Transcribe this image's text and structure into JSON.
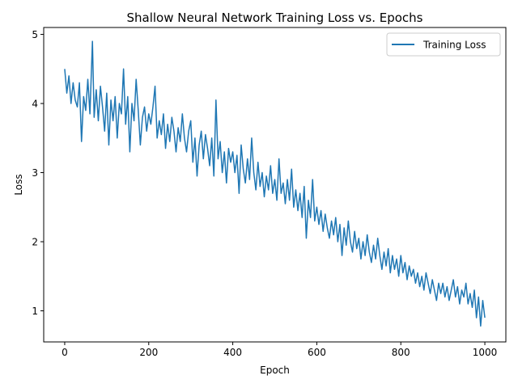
{
  "chart_data": {
    "type": "line",
    "title": "Shallow Neural Network Training Loss vs. Epochs",
    "xlabel": "Epoch",
    "ylabel": "Loss",
    "xlim": [
      -50,
      1050
    ],
    "ylim": [
      0.55,
      5.1
    ],
    "xticks": [
      0,
      200,
      400,
      600,
      800,
      1000
    ],
    "yticks": [
      1,
      2,
      3,
      4,
      5
    ],
    "grid": false,
    "legend_position": "top-right",
    "series": [
      {
        "name": "Training Loss",
        "color": "#1f77b4",
        "points": [
          [
            0,
            4.5
          ],
          [
            5,
            4.15
          ],
          [
            10,
            4.4
          ],
          [
            15,
            4.0
          ],
          [
            20,
            4.3
          ],
          [
            25,
            4.05
          ],
          [
            30,
            3.95
          ],
          [
            35,
            4.3
          ],
          [
            40,
            3.45
          ],
          [
            45,
            4.1
          ],
          [
            50,
            3.9
          ],
          [
            55,
            4.35
          ],
          [
            60,
            3.85
          ],
          [
            66,
            4.9
          ],
          [
            70,
            3.8
          ],
          [
            75,
            4.2
          ],
          [
            80,
            3.75
          ],
          [
            85,
            4.25
          ],
          [
            90,
            3.95
          ],
          [
            95,
            3.6
          ],
          [
            100,
            4.15
          ],
          [
            105,
            3.4
          ],
          [
            110,
            4.05
          ],
          [
            115,
            3.75
          ],
          [
            120,
            4.1
          ],
          [
            125,
            3.5
          ],
          [
            130,
            4.0
          ],
          [
            135,
            3.85
          ],
          [
            140,
            4.5
          ],
          [
            145,
            3.7
          ],
          [
            150,
            4.1
          ],
          [
            155,
            3.3
          ],
          [
            160,
            4.0
          ],
          [
            165,
            3.75
          ],
          [
            170,
            4.35
          ],
          [
            175,
            3.9
          ],
          [
            180,
            3.4
          ],
          [
            185,
            3.8
          ],
          [
            190,
            3.95
          ],
          [
            195,
            3.6
          ],
          [
            200,
            3.85
          ],
          [
            205,
            3.7
          ],
          [
            210,
            3.95
          ],
          [
            215,
            4.25
          ],
          [
            220,
            3.5
          ],
          [
            225,
            3.75
          ],
          [
            230,
            3.55
          ],
          [
            235,
            3.85
          ],
          [
            240,
            3.35
          ],
          [
            245,
            3.7
          ],
          [
            250,
            3.45
          ],
          [
            255,
            3.8
          ],
          [
            260,
            3.6
          ],
          [
            265,
            3.3
          ],
          [
            270,
            3.65
          ],
          [
            275,
            3.45
          ],
          [
            280,
            3.85
          ],
          [
            285,
            3.5
          ],
          [
            290,
            3.3
          ],
          [
            295,
            3.6
          ],
          [
            300,
            3.75
          ],
          [
            305,
            3.15
          ],
          [
            310,
            3.5
          ],
          [
            315,
            2.95
          ],
          [
            320,
            3.4
          ],
          [
            325,
            3.6
          ],
          [
            330,
            3.2
          ],
          [
            335,
            3.55
          ],
          [
            340,
            3.35
          ],
          [
            345,
            3.1
          ],
          [
            350,
            3.5
          ],
          [
            355,
            2.95
          ],
          [
            360,
            4.05
          ],
          [
            365,
            3.2
          ],
          [
            370,
            3.45
          ],
          [
            375,
            3.0
          ],
          [
            380,
            3.3
          ],
          [
            385,
            2.85
          ],
          [
            390,
            3.35
          ],
          [
            395,
            3.15
          ],
          [
            400,
            3.3
          ],
          [
            405,
            3.0
          ],
          [
            410,
            3.25
          ],
          [
            415,
            2.7
          ],
          [
            420,
            3.4
          ],
          [
            425,
            3.05
          ],
          [
            430,
            2.85
          ],
          [
            435,
            3.2
          ],
          [
            440,
            2.9
          ],
          [
            445,
            3.5
          ],
          [
            450,
            3.0
          ],
          [
            455,
            2.75
          ],
          [
            460,
            3.15
          ],
          [
            465,
            2.8
          ],
          [
            470,
            3.0
          ],
          [
            475,
            2.65
          ],
          [
            480,
            2.95
          ],
          [
            485,
            2.75
          ],
          [
            490,
            3.1
          ],
          [
            495,
            2.7
          ],
          [
            500,
            2.9
          ],
          [
            505,
            2.6
          ],
          [
            510,
            3.2
          ],
          [
            515,
            2.7
          ],
          [
            520,
            2.85
          ],
          [
            525,
            2.55
          ],
          [
            530,
            2.9
          ],
          [
            535,
            2.6
          ],
          [
            540,
            3.05
          ],
          [
            545,
            2.5
          ],
          [
            550,
            2.75
          ],
          [
            555,
            2.45
          ],
          [
            560,
            2.7
          ],
          [
            565,
            2.35
          ],
          [
            570,
            2.8
          ],
          [
            575,
            2.05
          ],
          [
            580,
            2.6
          ],
          [
            585,
            2.35
          ],
          [
            590,
            2.9
          ],
          [
            595,
            2.3
          ],
          [
            600,
            2.5
          ],
          [
            605,
            2.25
          ],
          [
            610,
            2.45
          ],
          [
            615,
            2.15
          ],
          [
            620,
            2.4
          ],
          [
            625,
            2.2
          ],
          [
            630,
            2.05
          ],
          [
            635,
            2.3
          ],
          [
            640,
            2.1
          ],
          [
            645,
            2.35
          ],
          [
            650,
            2.0
          ],
          [
            655,
            2.25
          ],
          [
            660,
            1.8
          ],
          [
            665,
            2.2
          ],
          [
            670,
            1.95
          ],
          [
            675,
            2.3
          ],
          [
            680,
            2.0
          ],
          [
            685,
            1.85
          ],
          [
            690,
            2.15
          ],
          [
            695,
            1.9
          ],
          [
            700,
            2.05
          ],
          [
            705,
            1.75
          ],
          [
            710,
            2.0
          ],
          [
            715,
            1.8
          ],
          [
            720,
            2.1
          ],
          [
            725,
            1.85
          ],
          [
            730,
            1.7
          ],
          [
            735,
            1.95
          ],
          [
            740,
            1.75
          ],
          [
            745,
            2.05
          ],
          [
            750,
            1.8
          ],
          [
            755,
            1.6
          ],
          [
            760,
            1.85
          ],
          [
            765,
            1.65
          ],
          [
            770,
            1.9
          ],
          [
            775,
            1.55
          ],
          [
            780,
            1.8
          ],
          [
            785,
            1.6
          ],
          [
            790,
            1.75
          ],
          [
            795,
            1.5
          ],
          [
            800,
            1.8
          ],
          [
            805,
            1.55
          ],
          [
            810,
            1.7
          ],
          [
            815,
            1.45
          ],
          [
            820,
            1.65
          ],
          [
            825,
            1.5
          ],
          [
            830,
            1.6
          ],
          [
            835,
            1.4
          ],
          [
            840,
            1.55
          ],
          [
            845,
            1.35
          ],
          [
            850,
            1.5
          ],
          [
            855,
            1.3
          ],
          [
            860,
            1.55
          ],
          [
            865,
            1.4
          ],
          [
            870,
            1.25
          ],
          [
            875,
            1.45
          ],
          [
            880,
            1.3
          ],
          [
            885,
            1.15
          ],
          [
            890,
            1.4
          ],
          [
            895,
            1.25
          ],
          [
            900,
            1.4
          ],
          [
            905,
            1.2
          ],
          [
            910,
            1.35
          ],
          [
            915,
            1.15
          ],
          [
            920,
            1.3
          ],
          [
            925,
            1.45
          ],
          [
            930,
            1.2
          ],
          [
            935,
            1.35
          ],
          [
            940,
            1.1
          ],
          [
            945,
            1.3
          ],
          [
            950,
            1.2
          ],
          [
            955,
            1.4
          ],
          [
            960,
            1.1
          ],
          [
            965,
            1.25
          ],
          [
            970,
            1.05
          ],
          [
            975,
            1.3
          ],
          [
            980,
            0.9
          ],
          [
            985,
            1.2
          ],
          [
            990,
            0.78
          ],
          [
            995,
            1.15
          ],
          [
            1000,
            0.9
          ]
        ]
      }
    ]
  }
}
